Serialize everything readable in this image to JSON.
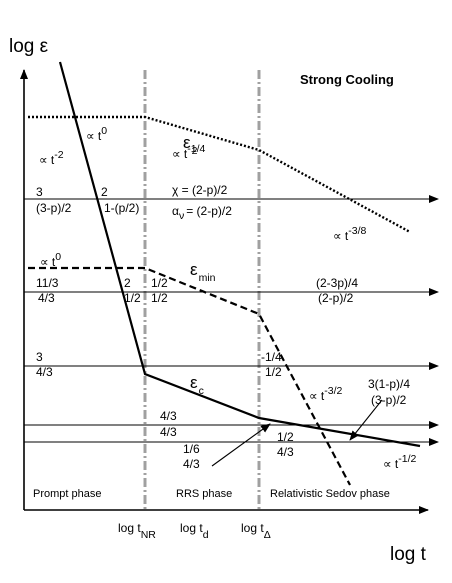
{
  "axes": {
    "y_label": "log ε",
    "x_label": "log t"
  },
  "title": "Strong Cooling",
  "time_ticks": {
    "t_nr": "log t",
    "t_nr_sub": "NR",
    "t_d": "log t",
    "t_d_sub": "d",
    "t_delta": "log t",
    "t_delta_sub": "Δ"
  },
  "phases": {
    "prompt": "Prompt phase",
    "rrs": "RRS phase",
    "sedov": "Relativistic Sedov phase"
  },
  "curves": {
    "eps2_sym": "ε",
    "eps2_sub": "2",
    "epsmin_sym": "ε",
    "epsmin_sub": "min",
    "epsc_sym": "ε",
    "epsc_sub": "c"
  },
  "power_laws": {
    "t0_a": "∝ t",
    "t0_a_exp": "0",
    "t14": "∝ t",
    "t14_exp": "-1/4",
    "t38": "∝ t",
    "t38_exp": "-3/8",
    "t2": "∝ t",
    "t2_exp": "-2",
    "t0_b": "∝ t",
    "t0_b_exp": "0",
    "t32": "∝ t",
    "t32_exp": "-3/2",
    "t12": "∝ t",
    "t12_exp": "-1/2"
  },
  "formulas": {
    "chi": "χ = (2-p)/2",
    "alpha_sym": "α",
    "alpha_sub": "ν",
    "alpha_rhs": "= (2-p)/2"
  },
  "labels": {
    "l1": "3",
    "l2": "(3-p)/2",
    "l3": "2",
    "l4": "1-(p/2)",
    "l5": "11/3",
    "l6": "4/3",
    "l7": "2",
    "l8": "1/2",
    "l9": "1/2",
    "l10": "1/2",
    "l11": "(2-3p)/4",
    "l12": "(2-p)/2",
    "l13": "3",
    "l14": "4/3",
    "l15": "-1/4",
    "l16": "1/2",
    "l17": "4/3",
    "l18": "4/3",
    "l19": "1/6",
    "l20": "4/3",
    "l21": "1/2",
    "l22": "4/3",
    "l23": "3(1-p)/4",
    "l24": "(3-p)/2"
  }
}
